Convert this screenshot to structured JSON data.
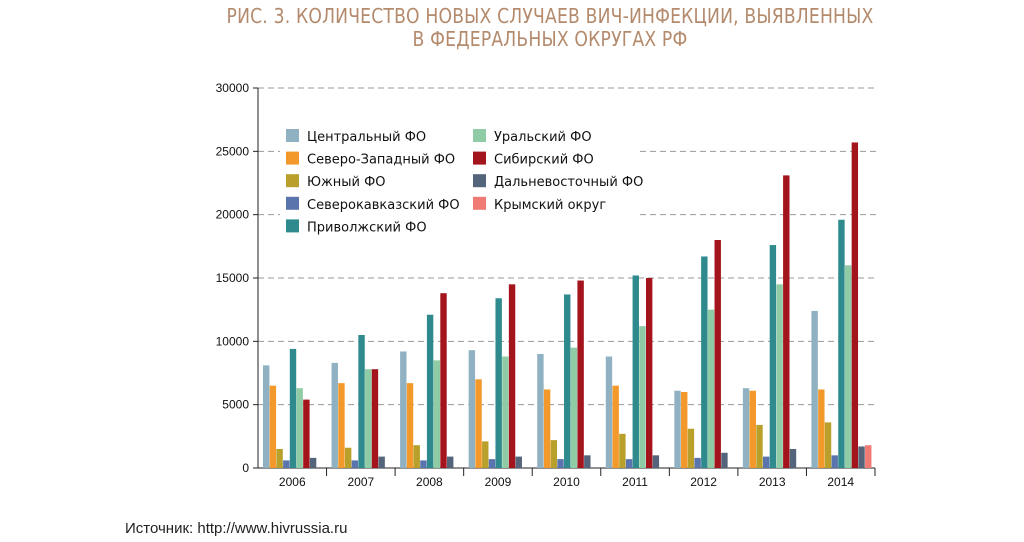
{
  "title": {
    "line1": "РИС. 3. КОЛИЧЕСТВО НОВЫХ СЛУЧАЕВ ВИЧ-ИНФЕКЦИИ, ВЫЯВЛЕННЫХ",
    "line2": "В ФЕДЕРАЛЬНЫХ ОКРУГАХ РФ"
  },
  "source": "Источник: http://www.hivrussia.ru",
  "chart_data": {
    "type": "bar",
    "title": "РИС. 3. КОЛИЧЕСТВО НОВЫХ СЛУЧАЕВ ВИЧ-ИНФЕКЦИИ, ВЫЯВЛЕННЫХ В ФЕДЕРАЛЬНЫХ ОКРУГАХ РФ",
    "xlabel": "",
    "ylabel": "",
    "ylim": [
      0,
      30000
    ],
    "yticks": [
      "0",
      "5000",
      "10000",
      "15000",
      "20000",
      "25000",
      "30000"
    ],
    "grid": "horizontal dashed",
    "legend_position": "top-left",
    "categories": [
      "2006",
      "2007",
      "2008",
      "2009",
      "2010",
      "2011",
      "2012",
      "2013",
      "2014"
    ],
    "series": [
      {
        "name": "Центральный ФО",
        "color": "#8fb1c2",
        "values": [
          8100,
          8300,
          9200,
          9300,
          9000,
          8800,
          6100,
          6300,
          12400
        ]
      },
      {
        "name": "Северо-Западный ФО",
        "color": "#f3992b",
        "values": [
          6500,
          6700,
          6700,
          7000,
          6200,
          6500,
          6000,
          6100,
          6200
        ]
      },
      {
        "name": "Южный ФО",
        "color": "#b8a02a",
        "values": [
          1500,
          1600,
          1800,
          2100,
          2200,
          2700,
          3100,
          3400,
          3600
        ]
      },
      {
        "name": "Северокавказский ФО",
        "color": "#5a74ad",
        "values": [
          600,
          600,
          600,
          700,
          700,
          700,
          800,
          900,
          1000
        ]
      },
      {
        "name": "Приволжский ФО",
        "color": "#2e8a8c",
        "values": [
          9400,
          10500,
          12100,
          13400,
          13700,
          15200,
          16700,
          17600,
          19600
        ]
      },
      {
        "name": "Уральский ФО",
        "color": "#8fcca6",
        "values": [
          6300,
          7800,
          8500,
          8800,
          9500,
          11200,
          12500,
          14500,
          16000
        ]
      },
      {
        "name": "Сибирский ФО",
        "color": "#a3141c",
        "values": [
          5400,
          7800,
          13800,
          14500,
          14800,
          15000,
          18000,
          23100,
          25700
        ]
      },
      {
        "name": "Дальневосточный ФО",
        "color": "#54647a",
        "values": [
          800,
          900,
          900,
          900,
          1000,
          1000,
          1200,
          1500,
          1700
        ]
      },
      {
        "name": "Крымский округ",
        "color": "#f07a74",
        "values": [
          null,
          null,
          null,
          null,
          null,
          null,
          null,
          null,
          1800
        ]
      }
    ]
  }
}
